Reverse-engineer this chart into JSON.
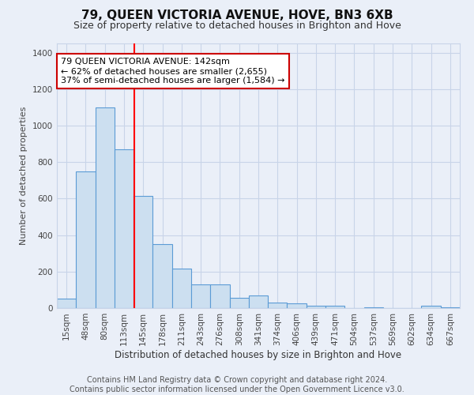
{
  "title": "79, QUEEN VICTORIA AVENUE, HOVE, BN3 6XB",
  "subtitle": "Size of property relative to detached houses in Brighton and Hove",
  "xlabel_dist": "Distribution of detached houses by size in Brighton and Hove",
  "ylabel": "Number of detached properties",
  "categories": [
    "15sqm",
    "48sqm",
    "80sqm",
    "113sqm",
    "145sqm",
    "178sqm",
    "211sqm",
    "243sqm",
    "276sqm",
    "308sqm",
    "341sqm",
    "374sqm",
    "406sqm",
    "439sqm",
    "471sqm",
    "504sqm",
    "537sqm",
    "569sqm",
    "602sqm",
    "634sqm",
    "667sqm"
  ],
  "values": [
    50,
    750,
    1100,
    870,
    615,
    350,
    215,
    130,
    130,
    55,
    70,
    30,
    25,
    15,
    15,
    0,
    5,
    0,
    0,
    15,
    5
  ],
  "bar_color": "#ccdff0",
  "bar_edge_color": "#5b9bd5",
  "bar_edge_width": 0.8,
  "red_line_x": 3.55,
  "annotation_box_text": "79 QUEEN VICTORIA AVENUE: 142sqm\n← 62% of detached houses are smaller (2,655)\n37% of semi-detached houses are larger (1,584) →",
  "annotation_box_color": "white",
  "annotation_box_edge_color": "#cc0000",
  "ylim": [
    0,
    1450
  ],
  "yticks": [
    0,
    200,
    400,
    600,
    800,
    1000,
    1200,
    1400
  ],
  "grid_color": "#c8d4e8",
  "bg_color": "#eaeff8",
  "footer_line1": "Contains HM Land Registry data © Crown copyright and database right 2024.",
  "footer_line2": "Contains public sector information licensed under the Open Government Licence v3.0.",
  "title_fontsize": 11,
  "subtitle_fontsize": 9,
  "annotation_fontsize": 8,
  "footer_fontsize": 7,
  "ylabel_fontsize": 8,
  "xlabel_fontsize": 8.5,
  "tick_fontsize": 7.5
}
